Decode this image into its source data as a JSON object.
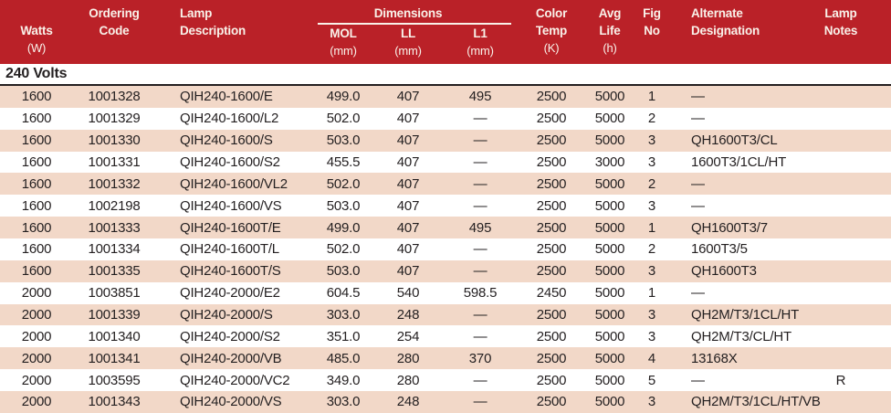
{
  "title": "Lamp specification table",
  "colors": {
    "header_red": "#ba2128",
    "header_text": "#f9f1e9",
    "row_stripe": "#f2d8c8",
    "text": "#231f20"
  },
  "header": {
    "watts": {
      "label": "Watts",
      "unit": "(W)"
    },
    "ordering": {
      "line1": "Ordering",
      "line2": "Code"
    },
    "lamp": {
      "line1": "Lamp",
      "line2": "Description"
    },
    "dimensions": {
      "group": "Dimensions",
      "mol": "MOL",
      "ll": "LL",
      "l1": "L1",
      "unit": "(mm)"
    },
    "color_temp": {
      "line1": "Color",
      "line2": "Temp",
      "unit": "(K)"
    },
    "avg_life": {
      "line1": "Avg",
      "line2": "Life",
      "unit": "(h)"
    },
    "fig": {
      "line1": "Fig",
      "line2": "No"
    },
    "alternate": {
      "line1": "Alternate",
      "line2": "Designation"
    },
    "notes": {
      "line1": "Lamp",
      "line2": "Notes"
    }
  },
  "section_title": "240 Volts",
  "rows": [
    {
      "watts": "1600",
      "code": "1001328",
      "description": "QIH240-1600/E",
      "mol": "499.0",
      "ll": "407",
      "l1": "495",
      "color_temp": "2500",
      "avg_life": "5000",
      "fig_no": "1",
      "alt_designation": "—",
      "lamp_notes": ""
    },
    {
      "watts": "1600",
      "code": "1001329",
      "description": "QIH240-1600/L2",
      "mol": "502.0",
      "ll": "407",
      "l1": "—",
      "color_temp": "2500",
      "avg_life": "5000",
      "fig_no": "2",
      "alt_designation": "—",
      "lamp_notes": ""
    },
    {
      "watts": "1600",
      "code": "1001330",
      "description": "QIH240-1600/S",
      "mol": "503.0",
      "ll": "407",
      "l1": "—",
      "color_temp": "2500",
      "avg_life": "5000",
      "fig_no": "3",
      "alt_designation": "QH1600T3/CL",
      "lamp_notes": ""
    },
    {
      "watts": "1600",
      "code": "1001331",
      "description": "QIH240-1600/S2",
      "mol": "455.5",
      "ll": "407",
      "l1": "—",
      "color_temp": "2500",
      "avg_life": "3000",
      "fig_no": "3",
      "alt_designation": "1600T3/1CL/HT",
      "lamp_notes": ""
    },
    {
      "watts": "1600",
      "code": "1001332",
      "description": "QIH240-1600/VL2",
      "mol": "502.0",
      "ll": "407",
      "l1": "—",
      "color_temp": "2500",
      "avg_life": "5000",
      "fig_no": "2",
      "alt_designation": "—",
      "lamp_notes": ""
    },
    {
      "watts": "1600",
      "code": "1002198",
      "description": "QIH240-1600/VS",
      "mol": "503.0",
      "ll": "407",
      "l1": "—",
      "color_temp": "2500",
      "avg_life": "5000",
      "fig_no": "3",
      "alt_designation": "—",
      "lamp_notes": ""
    },
    {
      "watts": "1600",
      "code": "1001333",
      "description": "QIH240-1600T/E",
      "mol": "499.0",
      "ll": "407",
      "l1": "495",
      "color_temp": "2500",
      "avg_life": "5000",
      "fig_no": "1",
      "alt_designation": "QH1600T3/7",
      "lamp_notes": ""
    },
    {
      "watts": "1600",
      "code": "1001334",
      "description": "QIH240-1600T/L",
      "mol": "502.0",
      "ll": "407",
      "l1": "—",
      "color_temp": "2500",
      "avg_life": "5000",
      "fig_no": "2",
      "alt_designation": "1600T3/5",
      "lamp_notes": ""
    },
    {
      "watts": "1600",
      "code": "1001335",
      "description": "QIH240-1600T/S",
      "mol": "503.0",
      "ll": "407",
      "l1": "—",
      "color_temp": "2500",
      "avg_life": "5000",
      "fig_no": "3",
      "alt_designation": "QH1600T3",
      "lamp_notes": ""
    },
    {
      "watts": "2000",
      "code": "1003851",
      "description": "QIH240-2000/E2",
      "mol": "604.5",
      "ll": "540",
      "l1": "598.5",
      "color_temp": "2450",
      "avg_life": "5000",
      "fig_no": "1",
      "alt_designation": "—",
      "lamp_notes": ""
    },
    {
      "watts": "2000",
      "code": "1001339",
      "description": "QIH240-2000/S",
      "mol": "303.0",
      "ll": "248",
      "l1": "—",
      "color_temp": "2500",
      "avg_life": "5000",
      "fig_no": "3",
      "alt_designation": "QH2M/T3/1CL/HT",
      "lamp_notes": ""
    },
    {
      "watts": "2000",
      "code": "1001340",
      "description": "QIH240-2000/S2",
      "mol": "351.0",
      "ll": "254",
      "l1": "—",
      "color_temp": "2500",
      "avg_life": "5000",
      "fig_no": "3",
      "alt_designation": "QH2M/T3/CL/HT",
      "lamp_notes": ""
    },
    {
      "watts": "2000",
      "code": "1001341",
      "description": "QIH240-2000/VB",
      "mol": "485.0",
      "ll": "280",
      "l1": "370",
      "color_temp": "2500",
      "avg_life": "5000",
      "fig_no": "4",
      "alt_designation": "13168X",
      "lamp_notes": ""
    },
    {
      "watts": "2000",
      "code": "1003595",
      "description": "QIH240-2000/VC2",
      "mol": "349.0",
      "ll": "280",
      "l1": "—",
      "color_temp": "2500",
      "avg_life": "5000",
      "fig_no": "5",
      "alt_designation": "—",
      "lamp_notes": "R"
    },
    {
      "watts": "2000",
      "code": "1001343",
      "description": "QIH240-2000/VS",
      "mol": "303.0",
      "ll": "248",
      "l1": "—",
      "color_temp": "2500",
      "avg_life": "5000",
      "fig_no": "3",
      "alt_designation": "QH2M/T3/1CL/HT/VB",
      "lamp_notes": ""
    }
  ]
}
